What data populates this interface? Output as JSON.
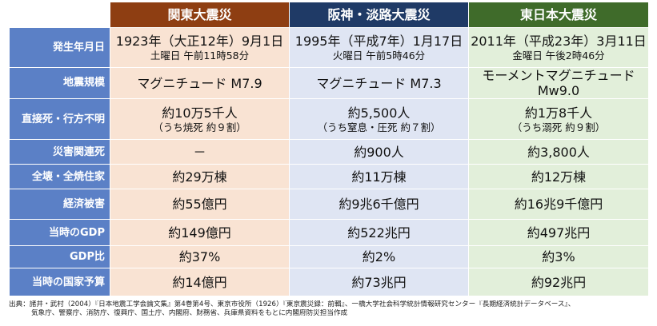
{
  "colors": {
    "label_bg": "#5b80c6",
    "col1_header": "#8e3e12",
    "col2_header": "#1f3a66",
    "col3_header": "#3f6b2a",
    "col1_cell": "#f9e3d3",
    "col2_cell": "#dfe5f3",
    "col3_cell": "#e2efda"
  },
  "headers": [
    "関東大震災",
    "阪神・淡路大震災",
    "東日本大震災"
  ],
  "rows": [
    {
      "label": "発生年月日",
      "cells": [
        {
          "main": "1923年（大正12年）9月1日",
          "sub": "土曜日 午前11時58分"
        },
        {
          "main": "1995年（平成7年）1月17日",
          "sub": "火曜日 午前5時46分"
        },
        {
          "main": "2011年（平成23年）3月11日",
          "sub": "金曜日 午後2時46分"
        }
      ]
    },
    {
      "label": "地震規模",
      "cells": [
        {
          "main": "マグニチュード M7.9",
          "sub": ""
        },
        {
          "main": "マグニチュード M7.3",
          "sub": ""
        },
        {
          "main": "モーメントマグニチュード Mw9.0",
          "sub": ""
        }
      ]
    },
    {
      "label": "直接死・行方不明",
      "cells": [
        {
          "main": "約10万5千人",
          "sub": "（うち焼死 約９割）"
        },
        {
          "main": "約5,500人",
          "sub": "（うち窒息・圧死 約７割）"
        },
        {
          "main": "約1万8千人",
          "sub": "（うち溺死 約９割）"
        }
      ]
    },
    {
      "label": "災害関連死",
      "cells": [
        {
          "main": "－",
          "sub": ""
        },
        {
          "main": "約900人",
          "sub": ""
        },
        {
          "main": "約3,800人",
          "sub": ""
        }
      ]
    },
    {
      "label": "全壊・全焼住家",
      "cells": [
        {
          "main": "約29万棟",
          "sub": ""
        },
        {
          "main": "約11万棟",
          "sub": ""
        },
        {
          "main": "約12万棟",
          "sub": ""
        }
      ]
    },
    {
      "label": "経済被害",
      "cells": [
        {
          "main": "約55億円",
          "sub": ""
        },
        {
          "main": "約9兆6千億円",
          "sub": ""
        },
        {
          "main": "約16兆9千億円",
          "sub": ""
        }
      ]
    },
    {
      "label": "当時のGDP",
      "cells": [
        {
          "main": "約149億円",
          "sub": ""
        },
        {
          "main": "約522兆円",
          "sub": ""
        },
        {
          "main": "約497兆円",
          "sub": ""
        }
      ]
    },
    {
      "label": "GDP比",
      "cells": [
        {
          "main": "約37%",
          "sub": ""
        },
        {
          "main": "約2%",
          "sub": ""
        },
        {
          "main": "約3%",
          "sub": ""
        }
      ]
    },
    {
      "label": "当時の国家予算",
      "cells": [
        {
          "main": "約14億円",
          "sub": ""
        },
        {
          "main": "約73兆円",
          "sub": ""
        },
        {
          "main": "約92兆円",
          "sub": ""
        }
      ]
    }
  ],
  "source": {
    "line1": "出典：諸井・武村（2004）『日本地震工学会論文集』第4巻第4号、東京市役所（1926）『東京震災録：前輯』、一橋大学社会科学統計情報研究センター『長期経済統計データベース』、",
    "line2": "気象庁、警察庁、消防庁、復興庁、国土庁、内閣府、財務省、兵庫県資料をもとに内閣府防災担当作成"
  }
}
